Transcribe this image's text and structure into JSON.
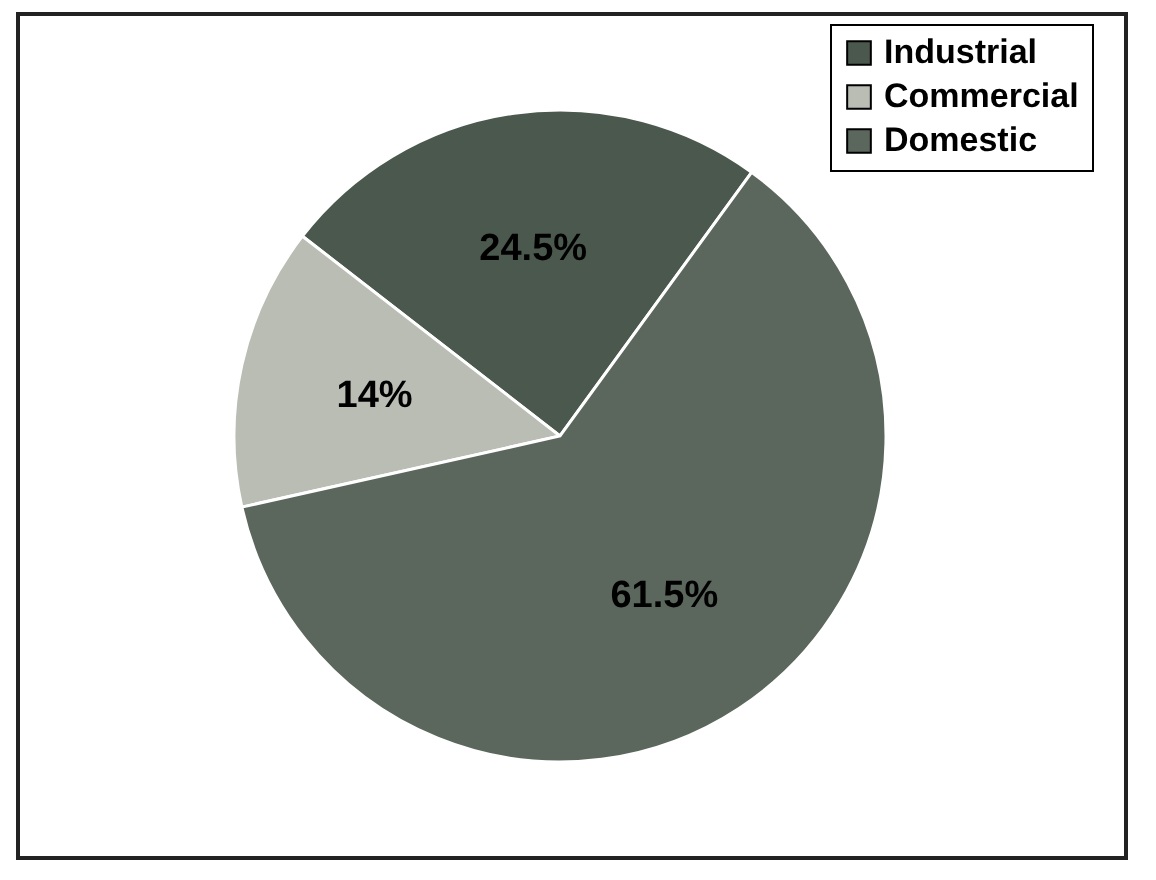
{
  "chart_data": {
    "type": "pie",
    "categories": [
      "Industrial",
      "Commercial",
      "Domestic"
    ],
    "values": [
      24.5,
      14,
      61.5
    ],
    "colors": [
      "#4b584e",
      "#b9bdb4",
      "#5b665d"
    ],
    "value_labels": [
      "24.5%",
      "14%",
      "61.5%"
    ],
    "legend": "top right"
  }
}
